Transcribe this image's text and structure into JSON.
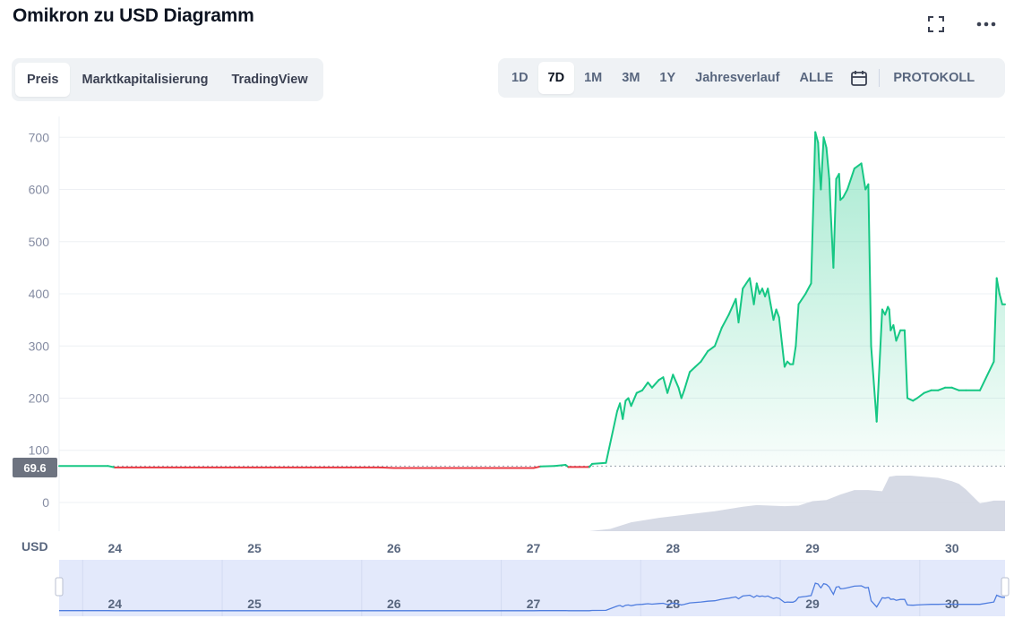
{
  "header": {
    "title": "Omikron zu USD Diagramm",
    "fullscreen_icon": "fullscreen-icon",
    "more_icon": "more-horizontal-icon"
  },
  "view_tabs": {
    "items": [
      {
        "label": "Preis",
        "active": true
      },
      {
        "label": "Marktkapitalisierung",
        "active": false
      },
      {
        "label": "TradingView",
        "active": false
      }
    ]
  },
  "range_tabs": {
    "items": [
      {
        "label": "1D",
        "active": false
      },
      {
        "label": "7D",
        "active": true
      },
      {
        "label": "1M",
        "active": false
      },
      {
        "label": "3M",
        "active": false
      },
      {
        "label": "1Y",
        "active": false
      },
      {
        "label": "Jahresverlauf",
        "active": false
      },
      {
        "label": "ALLE",
        "active": false
      }
    ],
    "calendar_icon": "calendar-icon",
    "log_label": "PROTOKOLL"
  },
  "colors": {
    "up": "#16c784",
    "down": "#ea3943",
    "volume": "#cfd3e0",
    "navigator_fill": "#e3e9fb",
    "navigator_line": "#4f7ddf"
  },
  "chart_data": {
    "type": "line",
    "title": "Omikron zu USD Diagramm",
    "ylabel": "USD",
    "ylim": [
      -55,
      740
    ],
    "yticks": [
      0,
      100,
      200,
      300,
      400,
      500,
      600,
      700
    ],
    "x_range": [
      23.6,
      30.38
    ],
    "xticks": [
      {
        "label": "24",
        "x": 24.0
      },
      {
        "label": "25",
        "x": 25.0
      },
      {
        "label": "26",
        "x": 26.0
      },
      {
        "label": "27",
        "x": 27.0
      },
      {
        "label": "28",
        "x": 28.0
      },
      {
        "label": "29",
        "x": 29.0
      },
      {
        "label": "30",
        "x": 30.0
      }
    ],
    "navigator_xticks": [
      {
        "label": "24",
        "x": 24.0
      },
      {
        "label": "25",
        "x": 25.0
      },
      {
        "label": "26",
        "x": 26.0
      },
      {
        "label": "27",
        "x": 27.0
      },
      {
        "label": "28",
        "x": 28.0
      },
      {
        "label": "29",
        "x": 29.0
      },
      {
        "label": "30",
        "x": 30.0
      }
    ],
    "reference_price": 69.6,
    "reference_label": "69.6",
    "currency_label": "USD",
    "series": [
      {
        "name": "Preis",
        "x": [
          23.6,
          23.95,
          24.0,
          24.5,
          25.0,
          25.5,
          25.9,
          26.0,
          26.3,
          26.5,
          26.8,
          27.0,
          27.05,
          27.15,
          27.23,
          27.25,
          27.4,
          27.42,
          27.52,
          27.6,
          27.62,
          27.64,
          27.66,
          27.68,
          27.7,
          27.74,
          27.78,
          27.82,
          27.85,
          27.9,
          27.93,
          27.96,
          28.0,
          28.04,
          28.06,
          28.08,
          28.12,
          28.16,
          28.2,
          28.25,
          28.3,
          28.35,
          28.4,
          28.45,
          28.47,
          28.5,
          28.55,
          28.58,
          28.6,
          28.62,
          28.64,
          28.66,
          28.68,
          28.7,
          28.72,
          28.74,
          28.76,
          28.8,
          28.82,
          28.84,
          28.86,
          28.88,
          28.9,
          28.95,
          28.99,
          29.02,
          29.04,
          29.05,
          29.06,
          29.08,
          29.1,
          29.12,
          29.13,
          29.15,
          29.17,
          29.19,
          29.2,
          29.22,
          29.25,
          29.3,
          29.35,
          29.38,
          29.4,
          29.42,
          29.46,
          29.5,
          29.52,
          29.54,
          29.55,
          29.56,
          29.58,
          29.6,
          29.63,
          29.66,
          29.68,
          29.72,
          29.75,
          29.8,
          29.85,
          29.9,
          29.95,
          30.0,
          30.05,
          30.1,
          30.2,
          30.3,
          30.32,
          30.34,
          30.36,
          30.38
        ],
        "y": [
          70,
          70,
          67,
          67,
          67,
          67,
          67,
          66,
          66,
          66,
          66,
          66,
          69,
          70,
          72,
          68,
          68,
          74,
          76,
          175,
          190,
          160,
          195,
          200,
          185,
          210,
          215,
          230,
          220,
          235,
          240,
          210,
          245,
          220,
          200,
          215,
          250,
          260,
          270,
          290,
          300,
          335,
          360,
          390,
          345,
          410,
          430,
          380,
          420,
          400,
          410,
          395,
          410,
          380,
          350,
          370,
          355,
          260,
          270,
          265,
          265,
          300,
          380,
          400,
          420,
          710,
          690,
          640,
          600,
          700,
          680,
          620,
          560,
          450,
          620,
          630,
          580,
          585,
          600,
          640,
          650,
          600,
          610,
          300,
          155,
          370,
          360,
          375,
          370,
          330,
          340,
          310,
          330,
          330,
          200,
          195,
          200,
          210,
          215,
          215,
          220,
          220,
          215,
          215,
          215,
          270,
          430,
          400,
          380,
          380
        ]
      }
    ],
    "volume": {
      "x": [
        23.6,
        27.4,
        27.55,
        27.7,
        27.9,
        28.1,
        28.3,
        28.5,
        28.6,
        28.7,
        28.8,
        28.9,
        29.0,
        29.1,
        29.2,
        29.3,
        29.4,
        29.5,
        29.55,
        29.6,
        29.7,
        29.8,
        29.9,
        30.0,
        30.05,
        30.1,
        30.2,
        30.3,
        30.38
      ],
      "y": [
        0,
        0,
        0.04,
        0.16,
        0.24,
        0.3,
        0.36,
        0.44,
        0.47,
        0.46,
        0.45,
        0.46,
        0.54,
        0.56,
        0.66,
        0.74,
        0.74,
        0.72,
        0.98,
        1.0,
        1.0,
        0.98,
        0.96,
        0.9,
        0.85,
        0.75,
        0.5,
        0.55,
        0.55
      ]
    }
  }
}
